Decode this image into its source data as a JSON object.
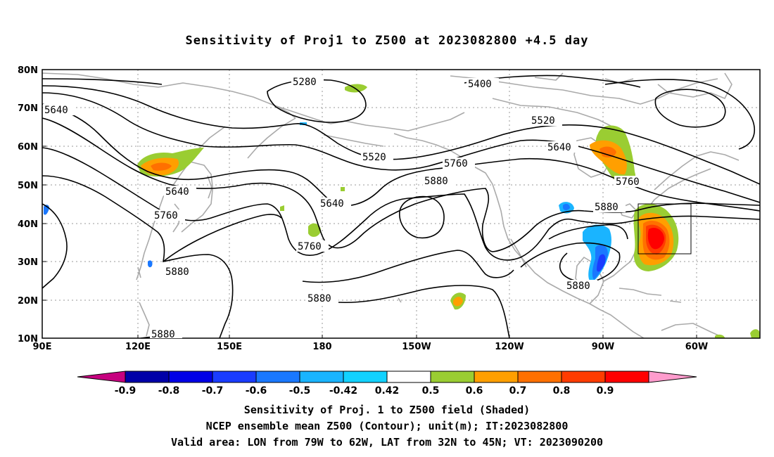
{
  "title": "Sensitivity of Proj1 to Z500 at 2023082800 +4.5 day",
  "lat_ticks": [
    "80N",
    "70N",
    "60N",
    "50N",
    "40N",
    "30N",
    "20N",
    "10N"
  ],
  "lon_ticks": [
    "90E",
    "120E",
    "150E",
    "180",
    "150W",
    "120W",
    "90W",
    "60W"
  ],
  "contour_labels": [
    "5280",
    "5400",
    "5520",
    "5520",
    "5640",
    "5640",
    "5640",
    "5640",
    "5760",
    "5760",
    "5760",
    "5760",
    "5880",
    "5880",
    "5880",
    "5880",
    "5880",
    "5880"
  ],
  "colorbar": {
    "labels": [
      "-0.9",
      "-0.8",
      "-0.7",
      "-0.6",
      "-0.5",
      "-0.42",
      "0.42",
      "0.5",
      "0.6",
      "0.7",
      "0.8",
      "0.9"
    ],
    "colors": [
      "#c6007f",
      "#0000a8",
      "#0000e6",
      "#1a3cff",
      "#1a78ff",
      "#1ab4ff",
      "#12d2ff",
      "#ffffff",
      "#9acd32",
      "#ff9f00",
      "#ff7000",
      "#ff3c00",
      "#ff0000",
      "#ff9ccd"
    ]
  },
  "caption": {
    "line1": "Sensitivity of Proj. 1 to Z500 field (Shaded)",
    "line2": "NCEP ensemble mean Z500 (Contour); unit(m); IT:2023082800",
    "line3": "Valid area: LON from 79W to 62W, LAT from 32N to 45N; VT: 2023090200"
  }
}
